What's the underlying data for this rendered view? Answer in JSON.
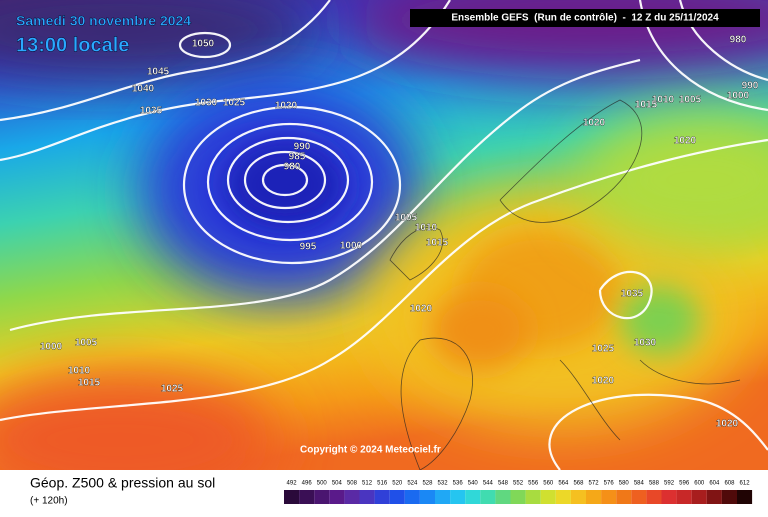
{
  "header": {
    "date": "Samedi 30 novembre 2024",
    "time": "13:00 locale",
    "model": "Ensemble GEFS  (Run de contrôle)  -  12 Z du 25/11/2024"
  },
  "isobar_labels": [
    1050,
    1045,
    1040,
    1035,
    1030,
    1025,
    1020,
    990,
    985,
    980,
    995,
    1000,
    1005,
    1010,
    1015,
    1020,
    980,
    990,
    1000,
    1005,
    1010,
    1015,
    1020,
    1020,
    1035,
    1025,
    1030,
    1020,
    1020,
    1000,
    1005,
    1010,
    1015,
    1025
  ],
  "copyright": "Copyright © 2024 Meteociel.fr",
  "footer": {
    "title": "Géop. Z500 & pression au sol",
    "subtitle": "(+ 120h)"
  },
  "legend": {
    "ticks": [
      492,
      496,
      500,
      504,
      508,
      512,
      516,
      520,
      524,
      528,
      532,
      536,
      540,
      544,
      548,
      552,
      556,
      560,
      564,
      568,
      572,
      576,
      580,
      584,
      588,
      592,
      596,
      600,
      604,
      608,
      612
    ]
  }
}
